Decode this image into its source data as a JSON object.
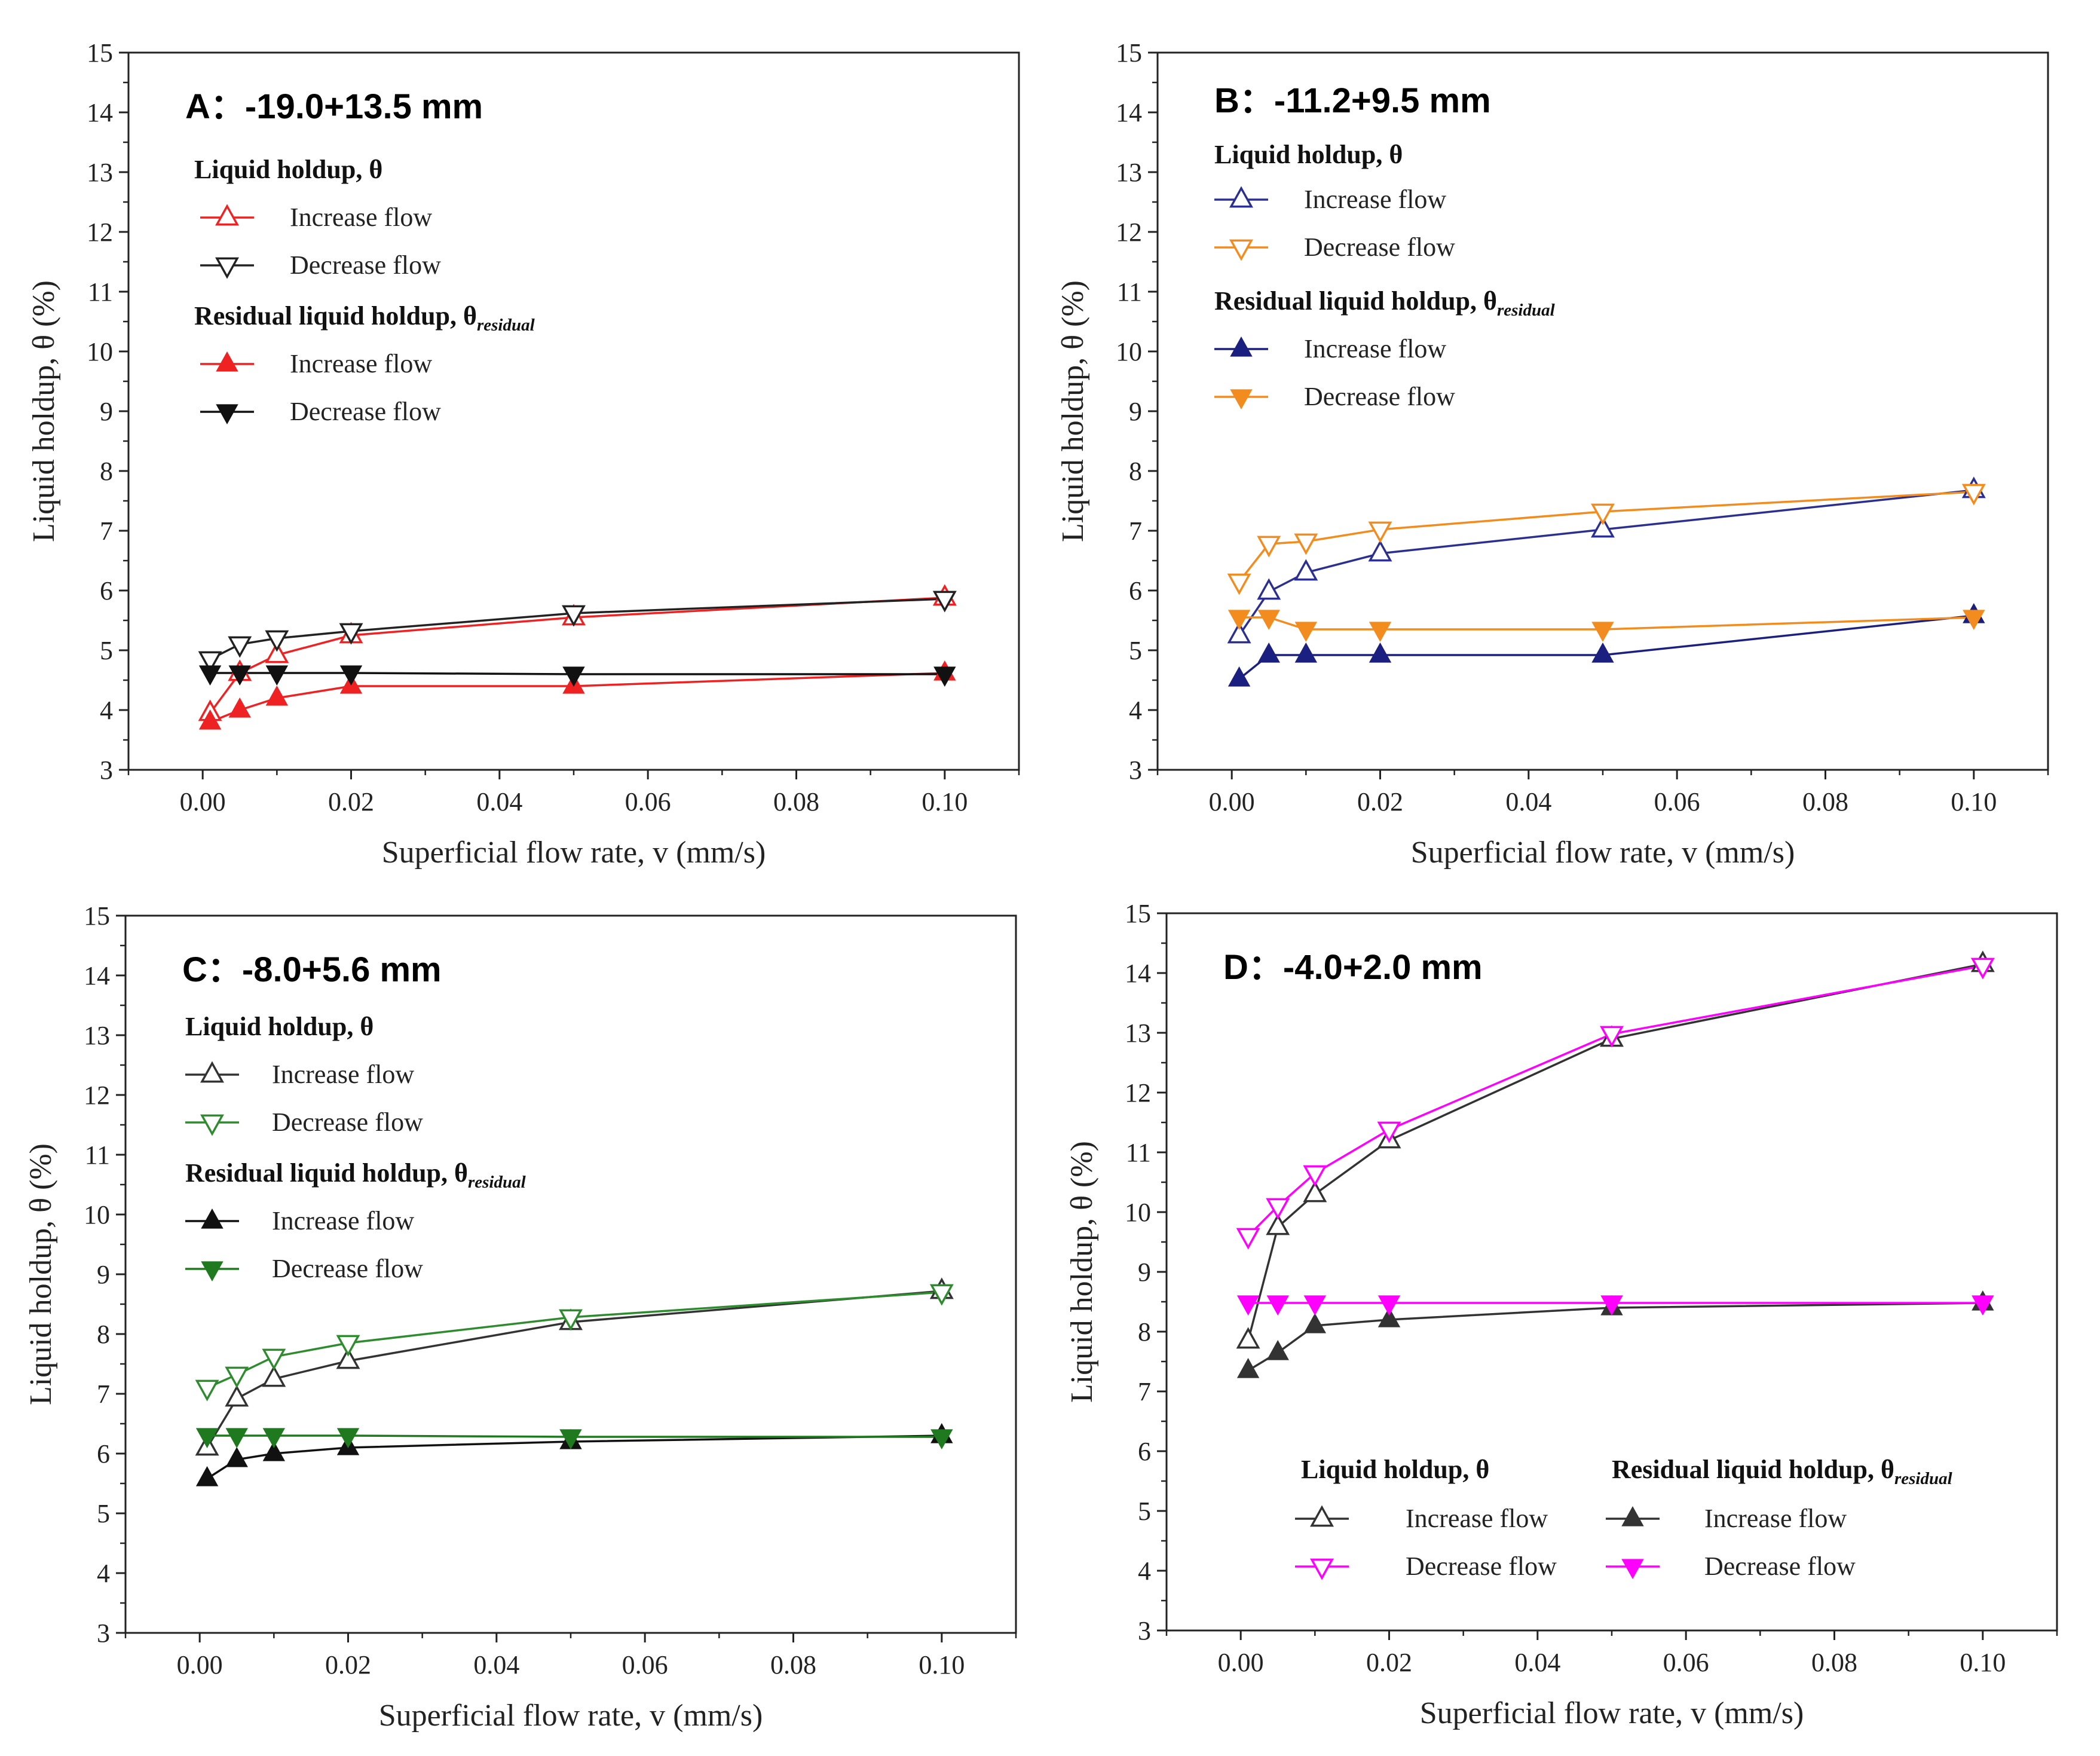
{
  "chart_data": [
    {
      "type": "line",
      "panel": "A",
      "title": "A：-19.0+13.5 mm",
      "xlabel": "Superficial flow rate, v (mm/s)",
      "ylabel": "Liquid holdup, θ (%)",
      "xlim": [
        -0.01,
        0.11
      ],
      "ylim": [
        3,
        15
      ],
      "xticks": [
        "0.00",
        "0.02",
        "0.04",
        "0.06",
        "0.08",
        "0.10"
      ],
      "yticks": [
        "3",
        "4",
        "5",
        "6",
        "7",
        "8",
        "9",
        "10",
        "11",
        "12",
        "13",
        "14",
        "15"
      ],
      "x": [
        0.001,
        0.005,
        0.01,
        0.02,
        0.05,
        0.1
      ],
      "legend": {
        "group1": "Liquid holdup, θ",
        "group2_main": "Residual liquid holdup, θ",
        "group2_sub": "residual"
      },
      "series": [
        {
          "name": "Increase flow",
          "group": "holdup",
          "color": "#ee2222",
          "marker": "triangle-up-open",
          "values": [
            3.95,
            4.62,
            4.92,
            5.25,
            5.55,
            5.88
          ]
        },
        {
          "name": "Decrease flow",
          "group": "holdup",
          "color": "#222222",
          "marker": "triangle-down-open",
          "values": [
            4.85,
            5.1,
            5.2,
            5.32,
            5.62,
            5.86
          ]
        },
        {
          "name": "Increase flow",
          "group": "residual",
          "color": "#ee2222",
          "marker": "triangle-up-filled",
          "values": [
            3.8,
            4.0,
            4.2,
            4.4,
            4.4,
            4.62
          ]
        },
        {
          "name": "Decrease flow",
          "group": "residual",
          "color": "#111111",
          "marker": "triangle-down-filled",
          "values": [
            4.62,
            4.62,
            4.62,
            4.62,
            4.6,
            4.6
          ]
        }
      ]
    },
    {
      "type": "line",
      "panel": "B",
      "title": "B：-11.2+9.5 mm",
      "xlabel": "Superficial flow rate, v (mm/s)",
      "ylabel": "Liquid holdup, θ (%)",
      "xlim": [
        -0.01,
        0.11
      ],
      "ylim": [
        3,
        15
      ],
      "xticks": [
        "0.00",
        "0.02",
        "0.04",
        "0.06",
        "0.08",
        "0.10"
      ],
      "yticks": [
        "3",
        "4",
        "5",
        "6",
        "7",
        "8",
        "9",
        "10",
        "11",
        "12",
        "13",
        "14",
        "15"
      ],
      "x": [
        0.001,
        0.005,
        0.01,
        0.02,
        0.05,
        0.1
      ],
      "legend": {
        "group1": "Liquid holdup, θ",
        "group2_main": "Residual liquid holdup, θ",
        "group2_sub": "residual"
      },
      "series": [
        {
          "name": "Increase flow",
          "group": "holdup",
          "color": "#2b2f8f",
          "marker": "triangle-up-open",
          "values": [
            5.25,
            5.98,
            6.3,
            6.62,
            7.02,
            7.68
          ]
        },
        {
          "name": "Decrease flow",
          "group": "holdup",
          "color": "#f28c1e",
          "marker": "triangle-down-open",
          "values": [
            6.15,
            6.78,
            6.82,
            7.02,
            7.32,
            7.65
          ]
        },
        {
          "name": "Increase flow",
          "group": "residual",
          "color": "#1a1f80",
          "marker": "triangle-up-filled",
          "values": [
            4.52,
            4.92,
            4.92,
            4.92,
            4.92,
            5.58
          ]
        },
        {
          "name": "Decrease flow",
          "group": "residual",
          "color": "#f28c1e",
          "marker": "triangle-down-filled",
          "values": [
            5.55,
            5.55,
            5.35,
            5.35,
            5.35,
            5.55
          ]
        }
      ]
    },
    {
      "type": "line",
      "panel": "C",
      "title": "C：-8.0+5.6 mm",
      "xlabel": "Superficial flow rate, v (mm/s)",
      "ylabel": "Liquid holdup, θ (%)",
      "xlim": [
        -0.01,
        0.11
      ],
      "ylim": [
        3,
        15
      ],
      "xticks": [
        "0.00",
        "0.02",
        "0.04",
        "0.06",
        "0.08",
        "0.10"
      ],
      "yticks": [
        "3",
        "4",
        "5",
        "6",
        "7",
        "8",
        "9",
        "10",
        "11",
        "12",
        "13",
        "14",
        "15"
      ],
      "x": [
        0.001,
        0.005,
        0.01,
        0.02,
        0.05,
        0.1
      ],
      "legend": {
        "group1": "Liquid holdup, θ",
        "group2_main": "Residual liquid holdup, θ",
        "group2_sub": "residual"
      },
      "series": [
        {
          "name": "Increase flow",
          "group": "holdup",
          "color": "#333333",
          "marker": "triangle-up-open",
          "values": [
            6.1,
            6.92,
            7.25,
            7.55,
            8.2,
            8.72
          ]
        },
        {
          "name": "Decrease flow",
          "group": "holdup",
          "color": "#2e8b2e",
          "marker": "triangle-down-open",
          "values": [
            7.1,
            7.32,
            7.62,
            7.85,
            8.28,
            8.7
          ]
        },
        {
          "name": "Increase flow",
          "group": "residual",
          "color": "#111111",
          "marker": "triangle-up-filled",
          "values": [
            5.58,
            5.9,
            6.0,
            6.1,
            6.2,
            6.3
          ]
        },
        {
          "name": "Decrease flow",
          "group": "residual",
          "color": "#1f7a1f",
          "marker": "triangle-down-filled",
          "values": [
            6.3,
            6.3,
            6.3,
            6.3,
            6.28,
            6.28
          ]
        }
      ]
    },
    {
      "type": "line",
      "panel": "D",
      "title": "D：-4.0+2.0 mm",
      "xlabel": "Superficial flow rate, v (mm/s)",
      "ylabel": "Liquid holdup, θ (%)",
      "xlim": [
        -0.01,
        0.11
      ],
      "ylim": [
        3,
        15
      ],
      "xticks": [
        "0.00",
        "0.02",
        "0.04",
        "0.06",
        "0.08",
        "0.10"
      ],
      "yticks": [
        "3",
        "4",
        "5",
        "6",
        "7",
        "8",
        "9",
        "10",
        "11",
        "12",
        "13",
        "14",
        "15"
      ],
      "x": [
        0.001,
        0.005,
        0.01,
        0.02,
        0.05,
        0.1
      ],
      "legend": {
        "group1": "Liquid holdup, θ",
        "group2_main": "Residual liquid holdup, θ",
        "group2_sub": "residual"
      },
      "series": [
        {
          "name": "Increase flow",
          "group": "holdup",
          "color": "#333333",
          "marker": "triangle-up-open",
          "values": [
            7.85,
            9.75,
            10.3,
            11.2,
            12.9,
            14.15
          ]
        },
        {
          "name": "Decrease flow",
          "group": "holdup",
          "color": "#ff00ff",
          "marker": "triangle-down-open",
          "values": [
            9.6,
            10.1,
            10.65,
            11.38,
            12.98,
            14.12
          ]
        },
        {
          "name": "Increase flow",
          "group": "residual",
          "color": "#333333",
          "marker": "triangle-up-filled",
          "values": [
            7.35,
            7.65,
            8.1,
            8.2,
            8.4,
            8.48
          ]
        },
        {
          "name": "Decrease flow",
          "group": "residual",
          "color": "#ff00ff",
          "marker": "triangle-down-filled",
          "values": [
            8.48,
            8.48,
            8.48,
            8.48,
            8.48,
            8.48
          ]
        }
      ]
    }
  ]
}
